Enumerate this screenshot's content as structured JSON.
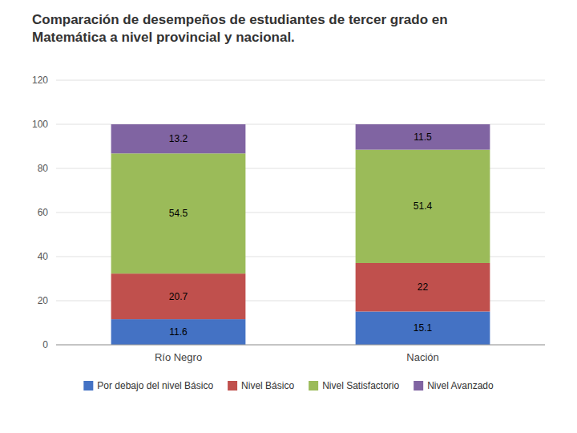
{
  "chart_data": {
    "type": "bar",
    "stacked": true,
    "title": "Comparación de desempeños de estudiantes de tercer grado en\nMatemática a nivel provincial y nacional.",
    "categories": [
      "Río Negro",
      "Nación"
    ],
    "series": [
      {
        "name": "Por debajo del nivel Básico",
        "color": "#4472C4",
        "values": [
          11.6,
          15.1
        ]
      },
      {
        "name": "Nivel Básico",
        "color": "#C0504D",
        "values": [
          20.7,
          22.0
        ]
      },
      {
        "name": "Nivel Satisfactorio",
        "color": "#9BBB59",
        "values": [
          54.5,
          51.4
        ]
      },
      {
        "name": "Nivel Avanzado",
        "color": "#8064A2",
        "values": [
          13.2,
          11.5
        ]
      }
    ],
    "ylim": [
      0,
      120
    ],
    "yticks": [
      0,
      20,
      40,
      60,
      80,
      100,
      120
    ],
    "grid": true,
    "legend": "bottom",
    "data_labels": true
  }
}
